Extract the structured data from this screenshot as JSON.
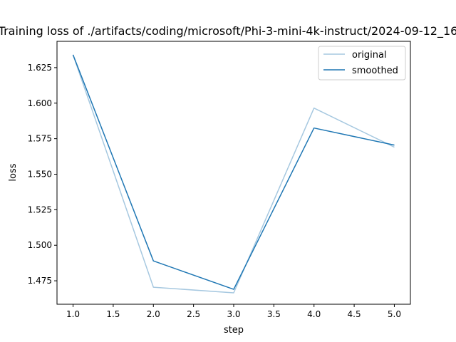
{
  "chart_data": {
    "type": "line",
    "title": "Training loss of ./artifacts/coding/microsoft/Phi-3-mini-4k-instruct/2024-09-12_16",
    "xlabel": "step",
    "ylabel": "loss",
    "xlim": [
      0.8,
      5.2
    ],
    "ylim": [
      1.4585,
      1.6435
    ],
    "xticks": [
      1.0,
      1.5,
      2.0,
      2.5,
      3.0,
      3.5,
      4.0,
      4.5,
      5.0
    ],
    "xtick_labels": [
      "1.0",
      "1.5",
      "2.0",
      "2.5",
      "3.0",
      "3.5",
      "4.0",
      "4.5",
      "5.0"
    ],
    "yticks": [
      1.475,
      1.5,
      1.525,
      1.55,
      1.575,
      1.6,
      1.625
    ],
    "ytick_labels": [
      "1.475",
      "1.500",
      "1.525",
      "1.550",
      "1.575",
      "1.600",
      "1.625"
    ],
    "grid": false,
    "legend": "top-right",
    "x": [
      1,
      2,
      3,
      4,
      5
    ],
    "series": [
      {
        "name": "original",
        "values": [
          1.634,
          1.4705,
          1.4665,
          1.5965,
          1.569
        ],
        "color": "#a6c8e0"
      },
      {
        "name": "smoothed",
        "values": [
          1.634,
          1.489,
          1.469,
          1.5825,
          1.5705
        ],
        "color": "#1f77b4"
      }
    ]
  }
}
